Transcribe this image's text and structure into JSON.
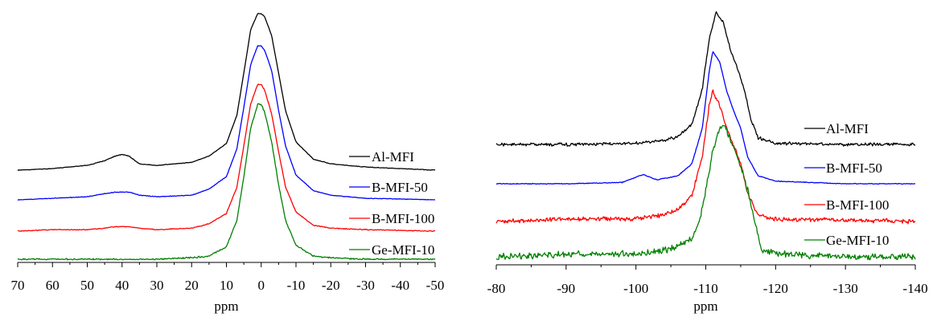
{
  "chart_data": [
    {
      "type": "line",
      "panel": "left",
      "xlabel": "ppm",
      "ylabel": "",
      "xlim": [
        70,
        -50
      ],
      "x_reversed": true,
      "xticks": [
        "70",
        "60",
        "50",
        "40",
        "30",
        "20",
        "10",
        "0",
        "-10",
        "-20",
        "-30",
        "-40",
        "-50"
      ],
      "y_axis_visible": false,
      "grid": false,
      "legend_placement": "right, inline with each trace",
      "stacked": true,
      "series": [
        {
          "name": "Al-MFI",
          "color": "#000000",
          "x": [
            70,
            60,
            50,
            45,
            42,
            40,
            38,
            35,
            30,
            20,
            15,
            10,
            7,
            5,
            3,
            1,
            0,
            -1,
            -3,
            -5,
            -7,
            -10,
            -15,
            -20,
            -30,
            -50
          ],
          "y": [
            0,
            0.01,
            0.03,
            0.06,
            0.09,
            0.1,
            0.09,
            0.04,
            0.03,
            0.05,
            0.09,
            0.17,
            0.35,
            0.62,
            0.9,
            1.0,
            1.0,
            0.98,
            0.86,
            0.62,
            0.38,
            0.18,
            0.07,
            0.04,
            0.02,
            0.0
          ]
        },
        {
          "name": "B-MFI-50",
          "color": "#0000ff",
          "x": [
            70,
            60,
            50,
            45,
            42,
            40,
            38,
            35,
            30,
            20,
            15,
            10,
            7,
            5,
            3,
            1,
            0,
            -1,
            -3,
            -5,
            -7,
            -10,
            -15,
            -20,
            -30,
            -50
          ],
          "y": [
            0,
            0.01,
            0.02,
            0.04,
            0.05,
            0.05,
            0.05,
            0.03,
            0.02,
            0.03,
            0.07,
            0.15,
            0.33,
            0.6,
            0.88,
            1.0,
            1.0,
            0.97,
            0.84,
            0.58,
            0.35,
            0.16,
            0.06,
            0.03,
            0.01,
            0.0
          ]
        },
        {
          "name": "B-MFI-100",
          "color": "#ff0000",
          "x": [
            70,
            60,
            50,
            45,
            42,
            40,
            38,
            35,
            30,
            20,
            15,
            10,
            7,
            5,
            3,
            1,
            0,
            -1,
            -3,
            -5,
            -7,
            -10,
            -15,
            -20,
            -30,
            -50
          ],
          "y": [
            0,
            0.01,
            0.01,
            0.02,
            0.03,
            0.03,
            0.03,
            0.02,
            0.01,
            0.02,
            0.05,
            0.12,
            0.3,
            0.58,
            0.87,
            1.0,
            1.0,
            0.96,
            0.8,
            0.54,
            0.3,
            0.13,
            0.04,
            0.02,
            0.01,
            0.0
          ]
        },
        {
          "name": "Ge-MFI-10",
          "color": "#008000",
          "x": [
            70,
            60,
            50,
            45,
            42,
            40,
            38,
            35,
            30,
            20,
            15,
            10,
            7,
            5,
            3,
            1,
            0,
            -1,
            -3,
            -5,
            -7,
            -10,
            -15,
            -20,
            -30,
            -50
          ],
          "y": [
            0,
            0.0,
            0.0,
            0.0,
            0.0,
            0.0,
            0.0,
            0.0,
            0.0,
            0.01,
            0.02,
            0.08,
            0.25,
            0.53,
            0.85,
            1.0,
            1.0,
            0.95,
            0.76,
            0.48,
            0.25,
            0.09,
            0.02,
            0.01,
            0.0,
            0.0
          ]
        }
      ]
    },
    {
      "type": "line",
      "panel": "right",
      "xlabel": "ppm",
      "ylabel": "",
      "xlim": [
        -80,
        -140
      ],
      "x_reversed": true,
      "xticks": [
        "-80",
        "-90",
        "-100",
        "-110",
        "-120",
        "-130",
        "-140"
      ],
      "y_axis_visible": false,
      "grid": false,
      "legend_placement": "right, inline with each trace",
      "stacked": true,
      "series": [
        {
          "name": "Al-MFI",
          "color": "#000000",
          "x": [
            -80,
            -90,
            -100,
            -104,
            -106,
            -108,
            -109.5,
            -110.5,
            -111.5,
            -112.5,
            -113.5,
            -114.5,
            -115.5,
            -116.5,
            -117.5,
            -120,
            -130,
            -140
          ],
          "y": [
            0.0,
            0.0,
            0.01,
            0.03,
            0.06,
            0.15,
            0.42,
            0.8,
            1.0,
            0.92,
            0.72,
            0.58,
            0.42,
            0.18,
            0.05,
            0.01,
            0.0,
            0.0
          ]
        },
        {
          "name": "B-MFI-50",
          "color": "#0000ff",
          "x": [
            -80,
            -90,
            -98,
            -101,
            -103,
            -106,
            -108,
            -109.5,
            -110.5,
            -111,
            -112,
            -113,
            -114,
            -115,
            -116,
            -117.5,
            -120,
            -130,
            -140
          ],
          "y": [
            0.0,
            0.0,
            0.01,
            0.07,
            0.03,
            0.06,
            0.15,
            0.42,
            0.85,
            1.0,
            0.92,
            0.7,
            0.55,
            0.42,
            0.2,
            0.06,
            0.02,
            0.0,
            0.0
          ]
        },
        {
          "name": "B-MFI-100",
          "color": "#ff0000",
          "x": [
            -80,
            -90,
            -100,
            -104,
            -106,
            -108,
            -109.5,
            -110.5,
            -111,
            -112,
            -113,
            -114,
            -115,
            -116,
            -117.5,
            -120,
            -130,
            -140
          ],
          "y": [
            0.0,
            0.02,
            0.02,
            0.05,
            0.09,
            0.2,
            0.5,
            0.9,
            1.0,
            0.9,
            0.72,
            0.58,
            0.45,
            0.22,
            0.05,
            0.02,
            0.01,
            0.0
          ]
        },
        {
          "name": "Ge-MFI-10",
          "color": "#008000",
          "x": [
            -80,
            -90,
            -100,
            -104,
            -106,
            -108,
            -109,
            -110,
            -111,
            -112,
            -112.5,
            -113,
            -114,
            -115,
            -116,
            -117,
            -118,
            -120,
            -130,
            -140
          ],
          "y": [
            0.0,
            0.02,
            0.02,
            0.05,
            0.08,
            0.14,
            0.25,
            0.5,
            0.8,
            0.97,
            1.0,
            0.95,
            0.82,
            0.68,
            0.5,
            0.28,
            0.05,
            0.02,
            0.0,
            0.0
          ]
        }
      ]
    }
  ]
}
